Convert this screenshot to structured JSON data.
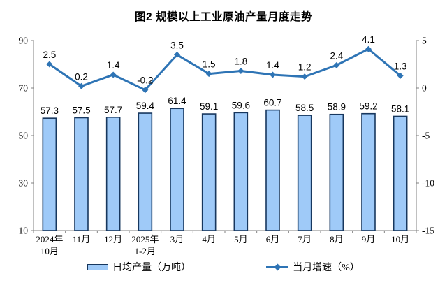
{
  "title": "图2 规模以上工业原油产量月度走势",
  "chart_data": {
    "type": "bar+line combo",
    "title": "图2 规模以上工业原油产量月度走势",
    "categories": [
      [
        "2024年",
        "10月"
      ],
      [
        "11月"
      ],
      [
        "12月"
      ],
      [
        "2025年",
        "1-2月"
      ],
      [
        "3月"
      ],
      [
        "4月"
      ],
      [
        "5月"
      ],
      [
        "6月"
      ],
      [
        "7月"
      ],
      [
        "8月"
      ],
      [
        "9月"
      ],
      [
        "10月"
      ]
    ],
    "series": [
      {
        "name": "日均产量（万吨）",
        "type": "bar",
        "axis": "left",
        "values": [
          57.3,
          57.5,
          57.7,
          59.4,
          61.4,
          59.1,
          59.6,
          60.7,
          58.5,
          58.9,
          59.2,
          58.1
        ]
      },
      {
        "name": "当月增速（%）",
        "type": "line",
        "axis": "right",
        "values": [
          2.5,
          0.2,
          1.4,
          -0.2,
          3.5,
          1.5,
          1.8,
          1.4,
          1.2,
          2.4,
          4.1,
          1.3
        ]
      }
    ],
    "left_axis": {
      "min": 10,
      "max": 90,
      "ticks": [
        90,
        70,
        50,
        30,
        10
      ]
    },
    "right_axis": {
      "min": -15,
      "max": 5,
      "ticks": [
        5,
        0,
        -5,
        -10,
        -15
      ]
    },
    "grid": "off",
    "legend_position": "bottom",
    "legend": [
      "日均产量（万吨）",
      "当月增速（%）"
    ],
    "colors": {
      "bar_fill": "#9FCAF8",
      "bar_border": "#17375E",
      "line": "#2E74B5",
      "axis": "#808080",
      "text": "#000000"
    }
  }
}
